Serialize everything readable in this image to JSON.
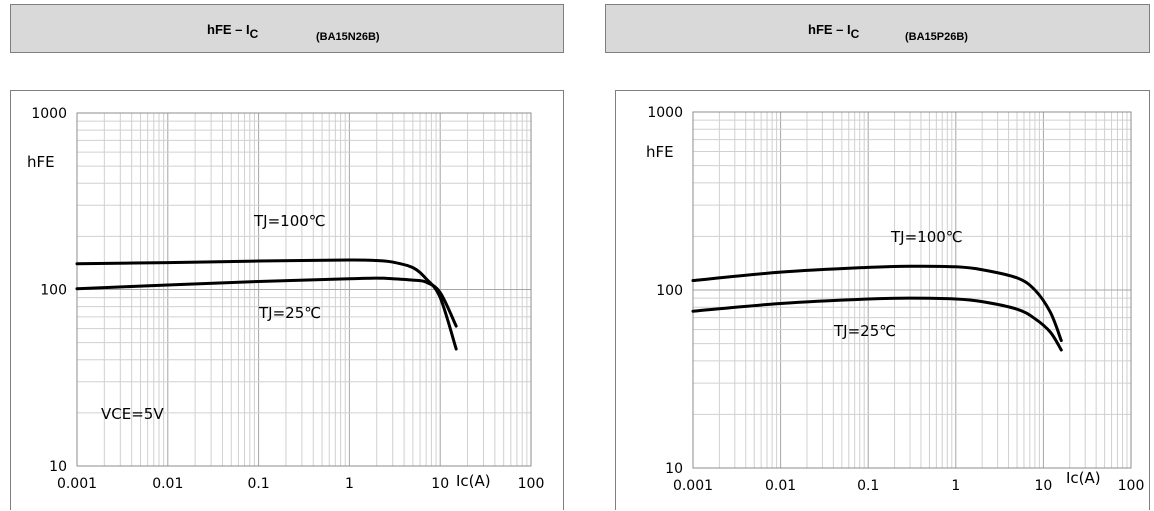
{
  "panels": [
    {
      "title": "hFE – I",
      "title_sub": "C",
      "part": "(BA15N26B)"
    },
    {
      "title": "hFE – I",
      "title_sub": "C",
      "part": "(BA15P26B)"
    }
  ],
  "chart_data": [
    {
      "type": "line",
      "title": "hFE – IC (BA15N26B)",
      "xscale": "log",
      "yscale": "log",
      "xlim": [
        0.001,
        100
      ],
      "ylim": [
        10,
        1000
      ],
      "xticks": [
        "0.001",
        "0.01",
        "0.1",
        "1",
        "10",
        "100"
      ],
      "yticks": [
        "1000",
        "100",
        "10"
      ],
      "xlabel": "Ic(A)",
      "ylabel": "hFE",
      "grid": true,
      "annotations": [
        "TJ=100℃",
        "TJ=25℃",
        "VCE=5V"
      ],
      "series": [
        {
          "name": "TJ=100℃",
          "x": [
            0.001,
            0.01,
            0.1,
            1,
            2,
            3,
            5,
            7,
            10,
            15
          ],
          "y": [
            140,
            142,
            145,
            147,
            146,
            143,
            133,
            115,
            90,
            46
          ]
        },
        {
          "name": "TJ=25℃",
          "x": [
            0.001,
            0.01,
            0.1,
            1,
            2,
            3,
            5,
            7,
            10,
            15
          ],
          "y": [
            101,
            106,
            111,
            115,
            116,
            115,
            113,
            110,
            96,
            62
          ]
        }
      ]
    },
    {
      "type": "line",
      "title": "hFE – IC (BA15P26B)",
      "xscale": "log",
      "yscale": "log",
      "xlim": [
        0.001,
        100
      ],
      "ylim": [
        10,
        1000
      ],
      "xticks": [
        "0.001",
        "0.01",
        "0.1",
        "1",
        "10",
        "100"
      ],
      "yticks": [
        "1000",
        "100",
        "10"
      ],
      "xlabel": "Ic(A)",
      "ylabel": "hFE",
      "grid": true,
      "annotations": [
        "TJ=100℃",
        "TJ=25℃"
      ],
      "series": [
        {
          "name": "TJ=100℃",
          "x": [
            0.001,
            0.01,
            0.1,
            0.3,
            1,
            2,
            5,
            8,
            12,
            16
          ],
          "y": [
            113,
            126,
            134,
            136,
            135,
            130,
            117,
            100,
            75,
            52
          ]
        },
        {
          "name": "TJ=25℃",
          "x": [
            0.001,
            0.01,
            0.1,
            0.3,
            1,
            2,
            5,
            8,
            12,
            16
          ],
          "y": [
            76,
            84,
            89,
            90,
            89,
            86,
            78,
            69,
            58,
            46
          ]
        }
      ]
    }
  ]
}
